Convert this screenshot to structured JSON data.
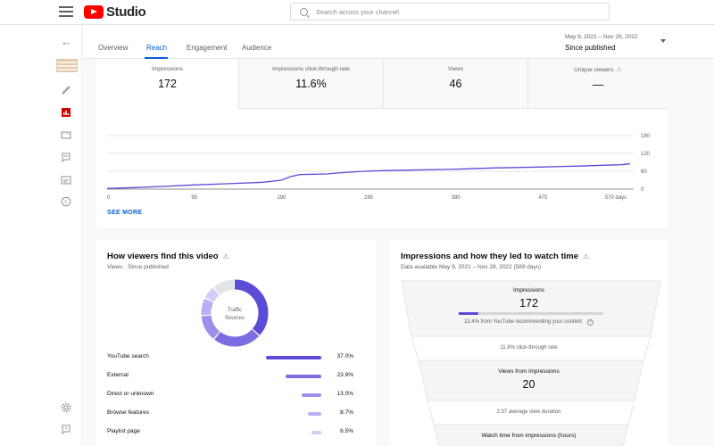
{
  "app": {
    "logo_text": "Studio"
  },
  "search": {
    "placeholder": "Search across your channel"
  },
  "tabs": [
    {
      "label": "Overview"
    },
    {
      "label": "Reach"
    },
    {
      "label": "Engagement"
    },
    {
      "label": "Audience"
    }
  ],
  "date_range": {
    "dates": "May 9, 2021 – Nov 29, 2022",
    "label": "Since published"
  },
  "metrics": [
    {
      "label": "Impressions",
      "value": "172"
    },
    {
      "label": "Impressions click-through rate",
      "value": "11.6%"
    },
    {
      "label": "Views",
      "value": "46"
    },
    {
      "label": "Unique viewers",
      "value": "—"
    }
  ],
  "chart_data": {
    "type": "line",
    "x_ticks": [
      "0",
      "95",
      "190",
      "285",
      "380",
      "475",
      "570 days"
    ],
    "y_ticks": [
      "180",
      "120",
      "60",
      "0"
    ],
    "ylim": [
      0,
      180
    ],
    "xlim": [
      0,
      570
    ],
    "series_color": "#5c4bd6",
    "x": [
      0,
      30,
      60,
      95,
      130,
      170,
      190,
      200,
      210,
      240,
      250,
      280,
      300,
      330,
      380,
      420,
      470,
      510,
      540,
      560,
      570
    ],
    "y": [
      2,
      5,
      9,
      14,
      18,
      23,
      30,
      42,
      49,
      51,
      54,
      60,
      62,
      64,
      67,
      71,
      74,
      77,
      80,
      82,
      85
    ]
  },
  "see_more_label": "SEE MORE",
  "traffic": {
    "title": "How viewers find this video",
    "subtitle": "Views · Since published",
    "donut_label_1": "Traffic",
    "donut_label_2": "Sources",
    "sources": [
      {
        "label": "YouTube search",
        "pct": "37.0%",
        "value": 37.0,
        "color": "#5c4bd6"
      },
      {
        "label": "External",
        "pct": "23.9%",
        "value": 23.9,
        "color": "#7c6de0"
      },
      {
        "label": "Direct or unknown",
        "pct": "13.0%",
        "value": 13.0,
        "color": "#9c91e8"
      },
      {
        "label": "Browse features",
        "pct": "8.7%",
        "value": 8.7,
        "color": "#b8b0f0"
      },
      {
        "label": "Playlist page",
        "pct": "6.5%",
        "value": 6.5,
        "color": "#d3cef6"
      }
    ],
    "other_color": "#e4e4e4"
  },
  "funnel": {
    "title": "Impressions and how they led to watch time",
    "subtitle": "Data available May 9, 2021 – Nov 28, 2022 (569 days)",
    "impressions_label": "Impressions",
    "impressions_value": "172",
    "recommend_pct": 13.4,
    "recommend_text": "13.4% from YouTube recommending your content",
    "ctr_text": "11.6% click-through rate",
    "views_label": "Views from impressions",
    "views_value": "20",
    "avd_text": "2:37 average view duration",
    "watch_label": "Watch time from impressions (hours)"
  }
}
